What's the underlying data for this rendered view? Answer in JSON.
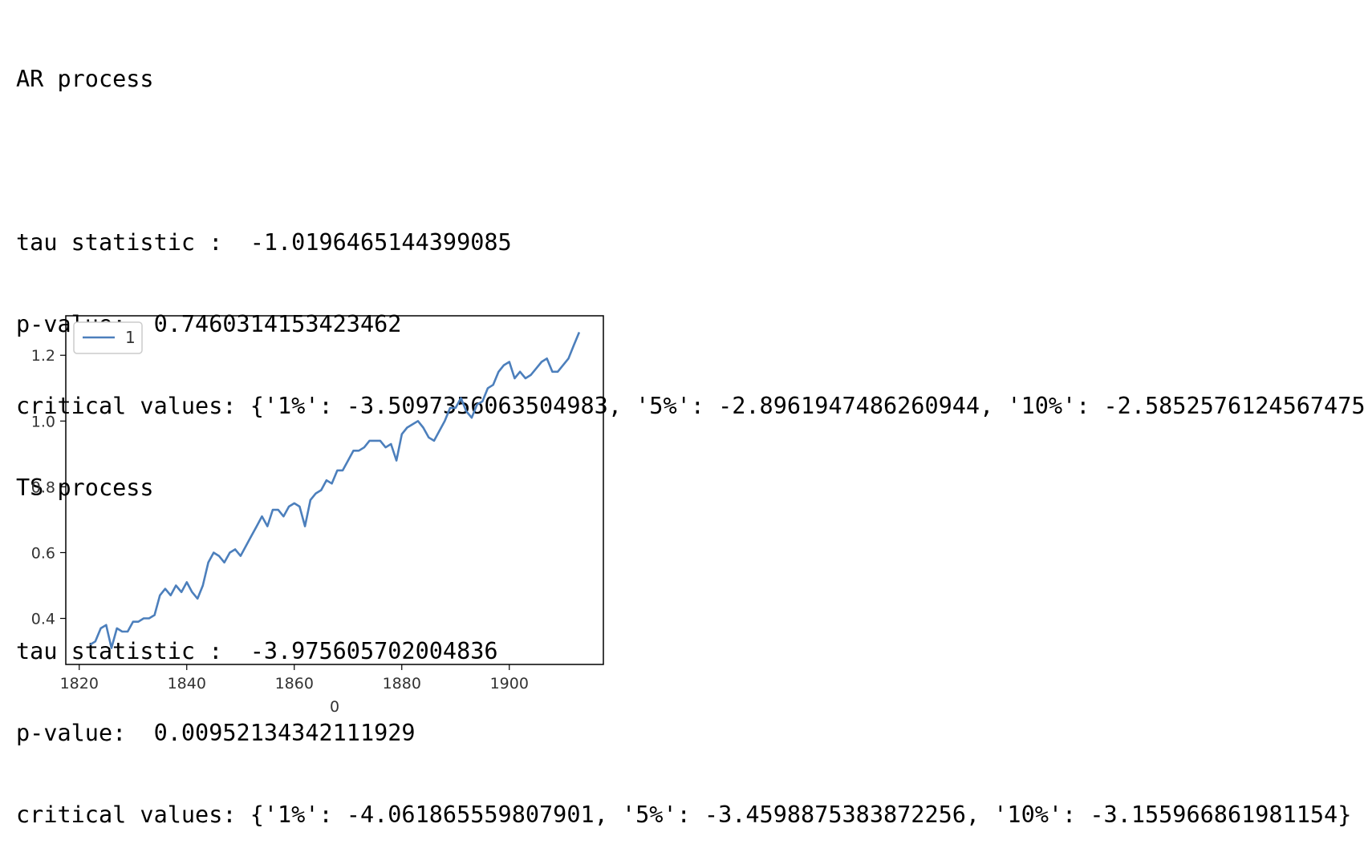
{
  "output": {
    "lines": [
      "AR process",
      "",
      "tau statistic :  -1.0196465144399085",
      "p-value:  0.7460314153423462",
      "critical values: {'1%': -3.5097356063504983, '5%': -2.8961947486260944, '10%': -2.5852576124567475}",
      "TS process",
      "",
      "tau statistic :  -3.975605702004836",
      "p-value:  0.00952134342111929",
      "critical values: {'1%': -4.061865559807901, '5%': -3.4598875383872256, '10%': -3.155966861981154}"
    ]
  },
  "chart_data": {
    "type": "line",
    "xlabel": "0",
    "ylabel": "",
    "xlim": [
      1817.5,
      1917.5
    ],
    "ylim": [
      0.26,
      1.32
    ],
    "xticks": [
      "1820",
      "1840",
      "1860",
      "1880",
      "1900"
    ],
    "yticks": [
      "0.4",
      "0.6",
      "0.8",
      "1.0",
      "1.2"
    ],
    "grid": false,
    "legend": "top-left",
    "line_color": "#4c7fbc",
    "x": [
      1822,
      1823,
      1824,
      1825,
      1826,
      1827,
      1828,
      1829,
      1830,
      1831,
      1832,
      1833,
      1834,
      1835,
      1836,
      1837,
      1838,
      1839,
      1840,
      1841,
      1842,
      1843,
      1844,
      1845,
      1846,
      1847,
      1848,
      1849,
      1850,
      1851,
      1852,
      1853,
      1854,
      1855,
      1856,
      1857,
      1858,
      1859,
      1860,
      1861,
      1862,
      1863,
      1864,
      1865,
      1866,
      1867,
      1868,
      1869,
      1870,
      1871,
      1872,
      1873,
      1874,
      1875,
      1876,
      1877,
      1878,
      1879,
      1880,
      1881,
      1882,
      1883,
      1884,
      1885,
      1886,
      1887,
      1888,
      1889,
      1890,
      1891,
      1892,
      1893,
      1894,
      1895,
      1896,
      1897,
      1898,
      1899,
      1900,
      1901,
      1902,
      1903,
      1904,
      1905,
      1906,
      1907,
      1908,
      1909,
      1910,
      1911,
      1912,
      1913
    ],
    "series": [
      {
        "name": "1",
        "values": [
          0.32,
          0.33,
          0.37,
          0.38,
          0.31,
          0.37,
          0.36,
          0.36,
          0.39,
          0.39,
          0.4,
          0.4,
          0.41,
          0.47,
          0.49,
          0.47,
          0.5,
          0.48,
          0.51,
          0.48,
          0.46,
          0.5,
          0.57,
          0.6,
          0.59,
          0.57,
          0.6,
          0.61,
          0.59,
          0.62,
          0.65,
          0.68,
          0.71,
          0.68,
          0.73,
          0.73,
          0.71,
          0.74,
          0.75,
          0.74,
          0.68,
          0.76,
          0.78,
          0.79,
          0.82,
          0.81,
          0.85,
          0.85,
          0.88,
          0.91,
          0.91,
          0.92,
          0.94,
          0.94,
          0.94,
          0.92,
          0.93,
          0.88,
          0.96,
          0.98,
          0.99,
          1.0,
          0.98,
          0.95,
          0.94,
          0.97,
          1.0,
          1.04,
          1.04,
          1.07,
          1.03,
          1.01,
          1.05,
          1.06,
          1.1,
          1.11,
          1.15,
          1.17,
          1.18,
          1.13,
          1.15,
          1.13,
          1.14,
          1.16,
          1.18,
          1.19,
          1.15,
          1.15,
          1.17,
          1.19,
          1.23,
          1.27
        ]
      }
    ]
  }
}
